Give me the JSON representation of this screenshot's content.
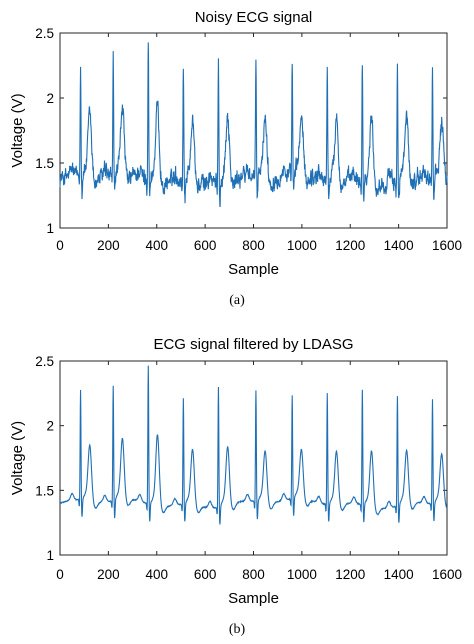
{
  "chart_data": [
    {
      "type": "line",
      "title": "Noisy ECG signal",
      "xlabel": "Sample",
      "ylabel": "Voltage (V)",
      "caption": "(a)",
      "xlim": [
        0,
        1600
      ],
      "ylim": [
        1,
        2.5
      ],
      "x_ticks": [
        0,
        200,
        400,
        600,
        800,
        1000,
        1200,
        1400,
        1600
      ],
      "y_ticks": [
        1,
        1.5,
        2,
        2.5
      ],
      "x_tick_labels": [
        "0",
        "200",
        "400",
        "600",
        "800",
        "1000",
        "1200",
        "1400",
        "1600"
      ],
      "y_tick_labels": [
        "1",
        "1.5",
        "2",
        "2.5"
      ],
      "grid": false,
      "color": "#1f6fb5",
      "noisy": true,
      "baseline": 1.38,
      "r_peaks": [
        {
          "x": 85,
          "y": 2.27
        },
        {
          "x": 220,
          "y": 2.31
        },
        {
          "x": 365,
          "y": 2.47
        },
        {
          "x": 510,
          "y": 2.24
        },
        {
          "x": 655,
          "y": 2.33
        },
        {
          "x": 810,
          "y": 2.27
        },
        {
          "x": 960,
          "y": 2.21
        },
        {
          "x": 1105,
          "y": 2.27
        },
        {
          "x": 1250,
          "y": 2.3
        },
        {
          "x": 1395,
          "y": 2.26
        },
        {
          "x": 1540,
          "y": 2.22
        }
      ],
      "t_waves": [
        1.87,
        1.92,
        1.96,
        1.85,
        1.89,
        1.85,
        1.82,
        1.86,
        1.88,
        1.85,
        1.83
      ]
    },
    {
      "type": "line",
      "title": "ECG signal filtered by LDASG",
      "xlabel": "Sample",
      "ylabel": "Voltage (V)",
      "caption": "(b)",
      "xlim": [
        0,
        1600
      ],
      "ylim": [
        1,
        2.5
      ],
      "x_ticks": [
        0,
        200,
        400,
        600,
        800,
        1000,
        1200,
        1400,
        1600
      ],
      "y_ticks": [
        1,
        1.5,
        2,
        2.5
      ],
      "x_tick_labels": [
        "0",
        "200",
        "400",
        "600",
        "800",
        "1000",
        "1200",
        "1400",
        "1600"
      ],
      "y_tick_labels": [
        "1",
        "1.5",
        "2",
        "2.5"
      ],
      "grid": false,
      "color": "#1f6fb5",
      "noisy": false,
      "baseline": 1.4,
      "r_peaks": [
        {
          "x": 85,
          "y": 2.25
        },
        {
          "x": 220,
          "y": 2.29
        },
        {
          "x": 365,
          "y": 2.47
        },
        {
          "x": 510,
          "y": 2.22
        },
        {
          "x": 655,
          "y": 2.33
        },
        {
          "x": 810,
          "y": 2.26
        },
        {
          "x": 960,
          "y": 2.2
        },
        {
          "x": 1105,
          "y": 2.26
        },
        {
          "x": 1250,
          "y": 2.29
        },
        {
          "x": 1395,
          "y": 2.25
        },
        {
          "x": 1540,
          "y": 2.21
        }
      ],
      "t_waves": [
        1.83,
        1.87,
        1.95,
        1.83,
        1.85,
        1.8,
        1.78,
        1.81,
        1.83,
        1.81,
        1.78
      ]
    }
  ]
}
